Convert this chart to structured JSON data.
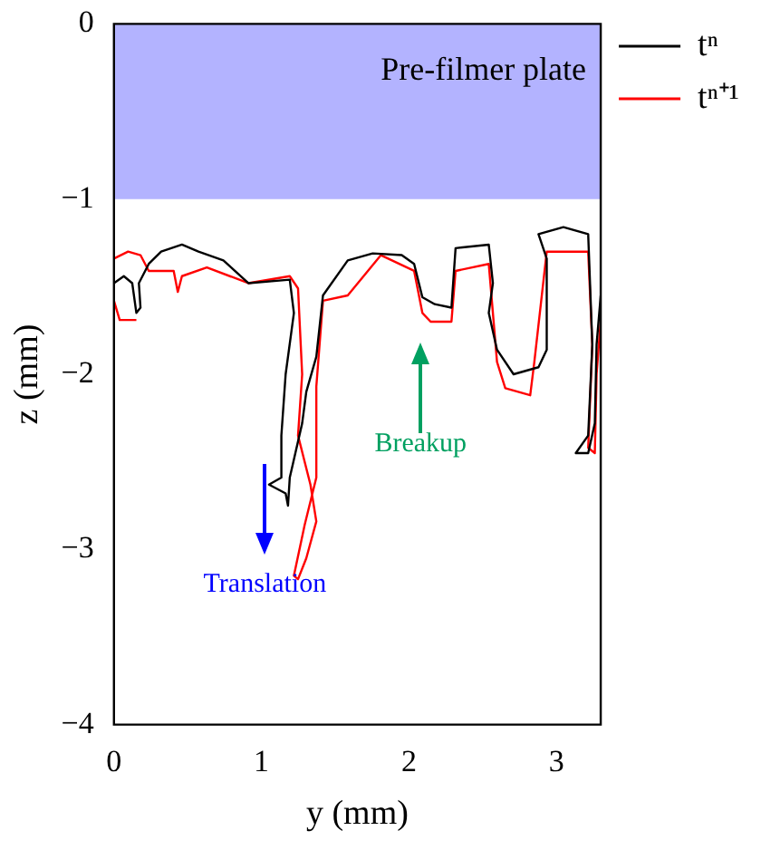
{
  "chart_data": {
    "type": "line",
    "xlabel": "y (mm)",
    "ylabel": "z (mm)",
    "xlim": [
      0,
      3.3
    ],
    "xticks": [
      0,
      1,
      2,
      3
    ],
    "ylim": [
      -4,
      0
    ],
    "yticks": [
      -4,
      -3,
      -2,
      -1,
      0
    ],
    "grid": false,
    "legend": "top right",
    "marker": "none",
    "line_style": "solid",
    "bands": [
      {
        "axis": "y",
        "from": -1,
        "to": 0,
        "label": "Pre-filmer plate",
        "color": "#b3b3ff"
      }
    ],
    "annotations": [
      "Translation",
      "Breakup"
    ],
    "series": [
      {
        "name": "tⁿ",
        "color": "#000000",
        "x": [
          0.0,
          0.067,
          0.124,
          0.152,
          0.18,
          0.169,
          0.236,
          0.32,
          0.461,
          0.573,
          0.742,
          0.911,
          1.192,
          1.22,
          1.164,
          1.135,
          1.135,
          1.051,
          1.164,
          1.18,
          1.192,
          1.276,
          1.304,
          1.372,
          1.417,
          1.585,
          1.754,
          1.951,
          2.035,
          2.091,
          2.175,
          2.288,
          2.316,
          2.541,
          2.569,
          2.541,
          2.597,
          2.709,
          2.878,
          2.934,
          2.934,
          2.878,
          3.047,
          3.215,
          3.243,
          3.215,
          3.131,
          3.215,
          3.26,
          3.272,
          3.3
        ],
        "values": [
          -1.48,
          -1.44,
          -1.48,
          -1.65,
          -1.62,
          -1.48,
          -1.37,
          -1.3,
          -1.26,
          -1.3,
          -1.35,
          -1.48,
          -1.46,
          -1.65,
          -2.0,
          -2.35,
          -2.59,
          -2.63,
          -2.68,
          -2.75,
          -2.59,
          -2.28,
          -2.1,
          -1.9,
          -1.55,
          -1.35,
          -1.31,
          -1.32,
          -1.37,
          -1.56,
          -1.6,
          -1.62,
          -1.28,
          -1.26,
          -1.48,
          -1.65,
          -1.86,
          -2.0,
          -1.96,
          -1.86,
          -1.34,
          -1.2,
          -1.16,
          -1.2,
          -1.83,
          -2.35,
          -2.45,
          -2.45,
          -2.28,
          -1.83,
          -1.55
        ]
      },
      {
        "name": "tⁿ⁺¹",
        "color": "#ff0000",
        "x": [
          0.152,
          0.039,
          0.0,
          0.0,
          0.096,
          0.18,
          0.236,
          0.405,
          0.433,
          0.461,
          0.63,
          0.911,
          1.192,
          1.248,
          1.276,
          1.248,
          1.332,
          1.372,
          1.304,
          1.248,
          1.22,
          1.293,
          1.372,
          1.372,
          1.417,
          1.585,
          1.81,
          2.035,
          2.091,
          2.147,
          2.288,
          2.316,
          2.541,
          2.597,
          2.653,
          2.822,
          2.85,
          2.934,
          3.215,
          3.243,
          3.215,
          3.26,
          3.272,
          3.3
        ],
        "values": [
          -1.69,
          -1.69,
          -1.58,
          -1.34,
          -1.3,
          -1.32,
          -1.41,
          -1.41,
          -1.53,
          -1.44,
          -1.39,
          -1.48,
          -1.44,
          -1.51,
          -2.0,
          -2.35,
          -2.63,
          -2.84,
          -3.05,
          -3.17,
          -3.15,
          -2.86,
          -2.59,
          -2.07,
          -1.58,
          -1.55,
          -1.32,
          -1.41,
          -1.65,
          -1.7,
          -1.7,
          -1.41,
          -1.37,
          -1.93,
          -2.08,
          -2.12,
          -1.93,
          -1.3,
          -1.3,
          -1.83,
          -2.42,
          -2.45,
          -2.0,
          -1.69
        ]
      }
    ]
  }
}
